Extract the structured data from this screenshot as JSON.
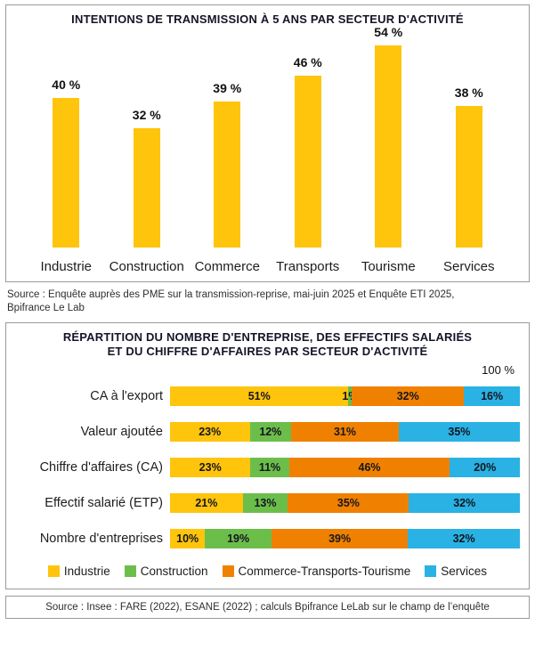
{
  "chart_data": [
    {
      "type": "bar",
      "title": "INTENTIONS DE TRANSMISSION À 5 ANS PAR SECTEUR D'ACTIVITÉ",
      "categories": [
        "Industrie",
        "Construction",
        "Commerce",
        "Transports",
        "Tourisme",
        "Services"
      ],
      "values": [
        40,
        32,
        39,
        46,
        54,
        38
      ],
      "value_labels": [
        "40 %",
        "32 %",
        "39 %",
        "46 %",
        "54 %",
        "38 %"
      ],
      "ylim": [
        0,
        60
      ],
      "grid": false,
      "bar_color": "#FFC40C"
    },
    {
      "type": "bar",
      "orientation": "horizontal",
      "stacked": true,
      "title_line1": "RÉPARTITION DU NOMBRE D'ENTREPRISE, DES EFFECTIFS SALARIÉS",
      "title_line2": "ET DU CHIFFRE D'AFFAIRES PAR SECTEUR D'ACTIVITÉ",
      "axis_max_label": "100 %",
      "xlim": [
        0,
        100
      ],
      "grid": false,
      "legend_position": "bottom",
      "categories": [
        "CA à l'export",
        "Valeur ajoutée",
        "Chiffre d'affaires (CA)",
        "Effectif salarié (ETP)",
        "Nombre d'entreprises"
      ],
      "series": [
        {
          "name": "Industrie",
          "color": "#FFC40C",
          "values": [
            51,
            23,
            23,
            21,
            10
          ]
        },
        {
          "name": "Construction",
          "color": "#6CBE4B",
          "values": [
            1,
            12,
            11,
            13,
            19
          ]
        },
        {
          "name": "Commerce-Transports-Tourisme",
          "color": "#F08100",
          "values": [
            32,
            31,
            46,
            35,
            39
          ]
        },
        {
          "name": "Services",
          "color": "#29B2E3",
          "values": [
            16,
            35,
            20,
            32,
            32
          ]
        }
      ]
    }
  ],
  "sources": {
    "top": "Source : Enquête auprès des PME sur la transmission-reprise, mai-juin 2025 et Enquête ETI 2025, Bpifrance Le Lab",
    "bottom": "Source : Insee : FARE (2022), ESANE (2022) ; calculs Bpifrance LeLab sur le champ de l’enquête"
  },
  "colors": {
    "industrie": "#FFC40C",
    "construction": "#6CBE4B",
    "commerce_transports_tourisme": "#F08100",
    "services": "#29B2E3",
    "title_text": "#151529",
    "border": "#9a9a9a"
  }
}
